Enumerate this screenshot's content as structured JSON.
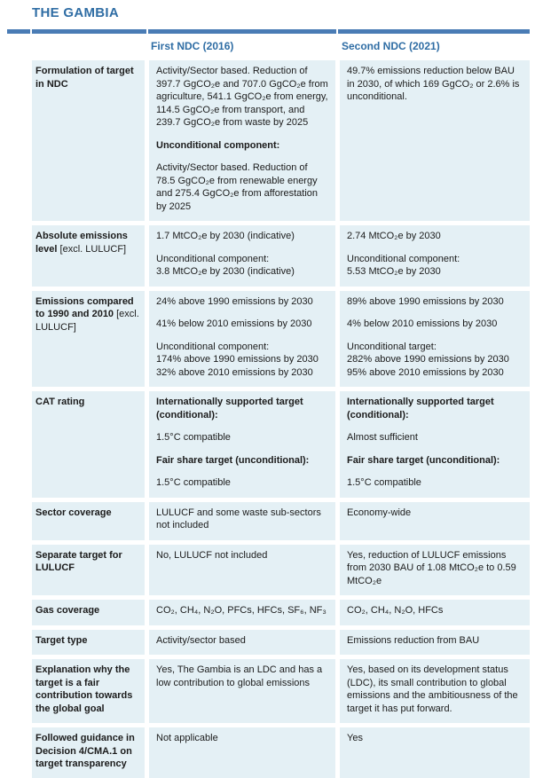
{
  "page": {
    "title": "THE GAMBIA"
  },
  "colors": {
    "accent_blue": "#2f6da4",
    "bar_blue": "#4a7cb5",
    "cell_background": "#e4f0f5",
    "text": "#1b1b1b"
  },
  "table": {
    "columns": [
      "First NDC (2016)",
      "Second NDC (2021)"
    ],
    "rows": [
      {
        "label_bold": "Formulation of target in NDC",
        "label_normal": "",
        "cells": [
          [
            [
              {
                "t": "Activity/Sector based. Reduction of 397.7 GgCO₂e and 707.0 GgCO₂e from agriculture, 541.1 GgCO₂e from energy, 114.5 GgCO₂e from transport, and 239.7 GgCO₂e from waste by 2025",
                "b": false
              }
            ],
            [
              {
                "t": "Unconditional component:",
                "b": true
              }
            ],
            [
              {
                "t": "Activity/Sector based. Reduction of 78.5 GgCO₂e from renewable energy and 275.4 GgCO₂e from afforestation by 2025",
                "b": false
              }
            ]
          ],
          [
            [
              {
                "t": "49.7% emissions reduction below BAU in 2030, of which 169 GgCO₂ or 2.6% is unconditional.",
                "b": false
              }
            ]
          ]
        ]
      },
      {
        "label_bold": "Absolute emissions level",
        "label_normal": " [excl. LULUCF]",
        "cells": [
          [
            [
              {
                "t": "1.7 MtCO₂e by 2030 (indicative)",
                "b": false
              }
            ],
            [
              {
                "t": "Unconditional component:",
                "b": false
              },
              {
                "t": "3.8 MtCO₂e by 2030 (indicative)",
                "b": false
              }
            ]
          ],
          [
            [
              {
                "t": "2.74 MtCO₂e by 2030",
                "b": false
              }
            ],
            [
              {
                "t": "Unconditional component:",
                "b": false
              },
              {
                "t": "5.53 MtCO₂e by 2030",
                "b": false
              }
            ]
          ]
        ]
      },
      {
        "label_bold": "Emissions compared to 1990 and 2010",
        "label_normal": " [excl. LULUCF]",
        "cells": [
          [
            [
              {
                "t": "24% above 1990 emissions by 2030",
                "b": false
              }
            ],
            [
              {
                "t": "41% below 2010 emissions by 2030",
                "b": false
              }
            ],
            [
              {
                "t": "Unconditional component:",
                "b": false
              },
              {
                "t": "174% above 1990 emissions by 2030",
                "b": false
              },
              {
                "t": "32% above 2010 emissions by 2030",
                "b": false
              }
            ]
          ],
          [
            [
              {
                "t": "89% above 1990 emissions by 2030",
                "b": false
              }
            ],
            [
              {
                "t": "4% below 2010 emissions by 2030",
                "b": false
              }
            ],
            [
              {
                "t": "Unconditional target:",
                "b": false
              },
              {
                "t": "282% above 1990 emissions by 2030",
                "b": false
              },
              {
                "t": "95% above 2010 emissions by 2030",
                "b": false
              }
            ]
          ]
        ]
      },
      {
        "label_bold": "CAT rating",
        "label_normal": "",
        "cells": [
          [
            [
              {
                "t": "Internationally supported target (conditional):",
                "b": true
              }
            ],
            [
              {
                "t": "1.5°C compatible",
                "b": false
              }
            ],
            [
              {
                "t": "Fair share target (unconditional):",
                "b": true
              }
            ],
            [
              {
                "t": "1.5°C compatible",
                "b": false
              }
            ]
          ],
          [
            [
              {
                "t": "Internationally supported target (conditional):",
                "b": true
              }
            ],
            [
              {
                "t": "Almost sufficient",
                "b": false
              }
            ],
            [
              {
                "t": "Fair share target (unconditional):",
                "b": true
              }
            ],
            [
              {
                "t": "1.5°C compatible",
                "b": false
              }
            ]
          ]
        ]
      },
      {
        "label_bold": "Sector coverage",
        "label_normal": "",
        "cells": [
          [
            [
              {
                "t": "LULUCF and some waste sub-sectors not included",
                "b": false
              }
            ]
          ],
          [
            [
              {
                "t": "Economy-wide",
                "b": false
              }
            ]
          ]
        ]
      },
      {
        "label_bold": "Separate target for LULUCF",
        "label_normal": "",
        "cells": [
          [
            [
              {
                "t": "No, LULUCF not included",
                "b": false
              }
            ]
          ],
          [
            [
              {
                "t": "Yes, reduction of LULUCF emissions from 2030 BAU of 1.08 MtCO₂e to 0.59 MtCO₂e",
                "b": false
              }
            ]
          ]
        ]
      },
      {
        "label_bold": "Gas coverage",
        "label_normal": "",
        "cells": [
          [
            [
              {
                "t": "CO₂, CH₄, N₂O, PFCs, HFCs, SF₆, NF₃",
                "b": false
              }
            ]
          ],
          [
            [
              {
                "t": "CO₂, CH₄, N₂O, HFCs",
                "b": false
              }
            ]
          ]
        ]
      },
      {
        "label_bold": "Target type",
        "label_normal": "",
        "cells": [
          [
            [
              {
                "t": "Activity/sector based",
                "b": false
              }
            ]
          ],
          [
            [
              {
                "t": "Emissions reduction from BAU",
                "b": false
              }
            ]
          ]
        ]
      },
      {
        "label_bold": "Explanation why the target is a fair contribution towards the global goal",
        "label_normal": "",
        "cells": [
          [
            [
              {
                "t": "Yes, The Gambia is an LDC and has a low contribution to global emissions",
                "b": false
              }
            ]
          ],
          [
            [
              {
                "t": "Yes, based on its development status (LDC), its small contribution to global emissions and the ambitiousness of the target it has put forward.",
                "b": false
              }
            ]
          ]
        ]
      },
      {
        "label_bold": "Followed guidance in Decision 4/CMA.1 on target transparency",
        "label_normal": "",
        "cells": [
          [
            [
              {
                "t": "Not applicable",
                "b": false
              }
            ]
          ],
          [
            [
              {
                "t": "Yes",
                "b": false
              }
            ]
          ]
        ]
      }
    ]
  }
}
